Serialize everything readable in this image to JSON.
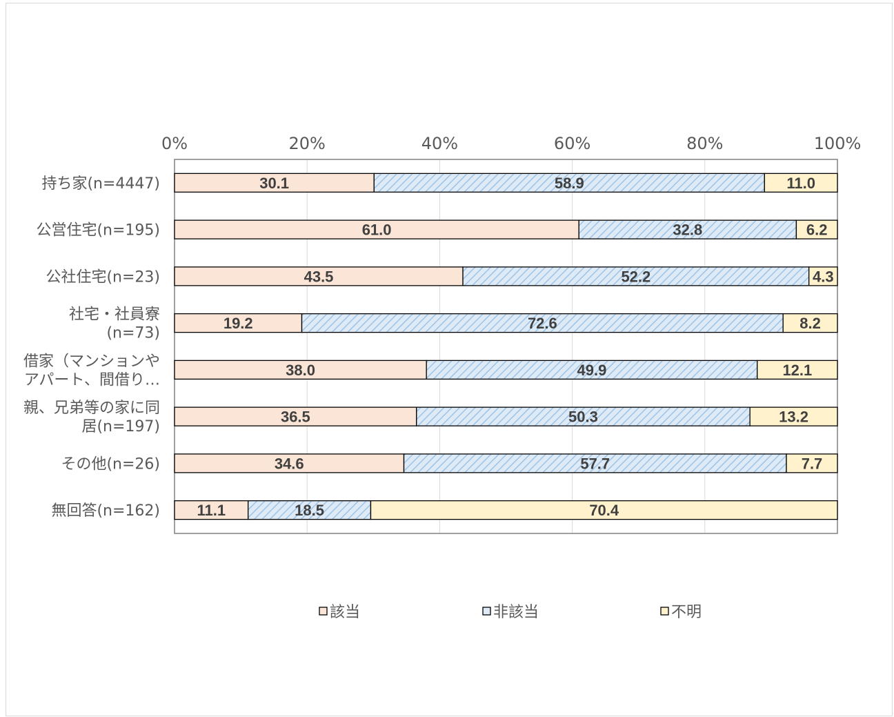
{
  "chart_data": {
    "type": "bar",
    "orientation": "horizontal",
    "stacked": true,
    "percent": true,
    "categories": [
      "持ち家(n=4447)",
      "公営住宅(n=195)",
      "公社住宅(n=23)",
      "社宅・社員寮\n(n=73)",
      "借家（マンションや\nアパート、間借り…",
      "親、兄弟等の家に同\n居(n=197)",
      "その他(n=26)",
      "無回答(n=162)"
    ],
    "series": [
      {
        "name": "該当",
        "values": [
          30.1,
          61.0,
          43.5,
          19.2,
          38.0,
          36.5,
          34.6,
          11.1
        ]
      },
      {
        "name": "非該当",
        "values": [
          58.9,
          32.8,
          52.2,
          72.6,
          49.9,
          50.3,
          57.7,
          18.5
        ]
      },
      {
        "name": "不明",
        "values": [
          11.0,
          6.2,
          4.3,
          8.2,
          12.1,
          13.2,
          7.7,
          70.4
        ]
      }
    ],
    "x_ticks": [
      "0%",
      "20%",
      "40%",
      "60%",
      "80%",
      "100%"
    ],
    "xlim": [
      0,
      100
    ],
    "axis_position": "top",
    "grid": true,
    "legend_position": "bottom",
    "colors": {
      "該当": "#fbe5d6",
      "非該当": "#deebf7",
      "不明": "#fff2cc",
      "hatch": "#9dc3e6",
      "border": "#000000",
      "grid": "#d9d9d9",
      "axis": "#808080"
    }
  }
}
